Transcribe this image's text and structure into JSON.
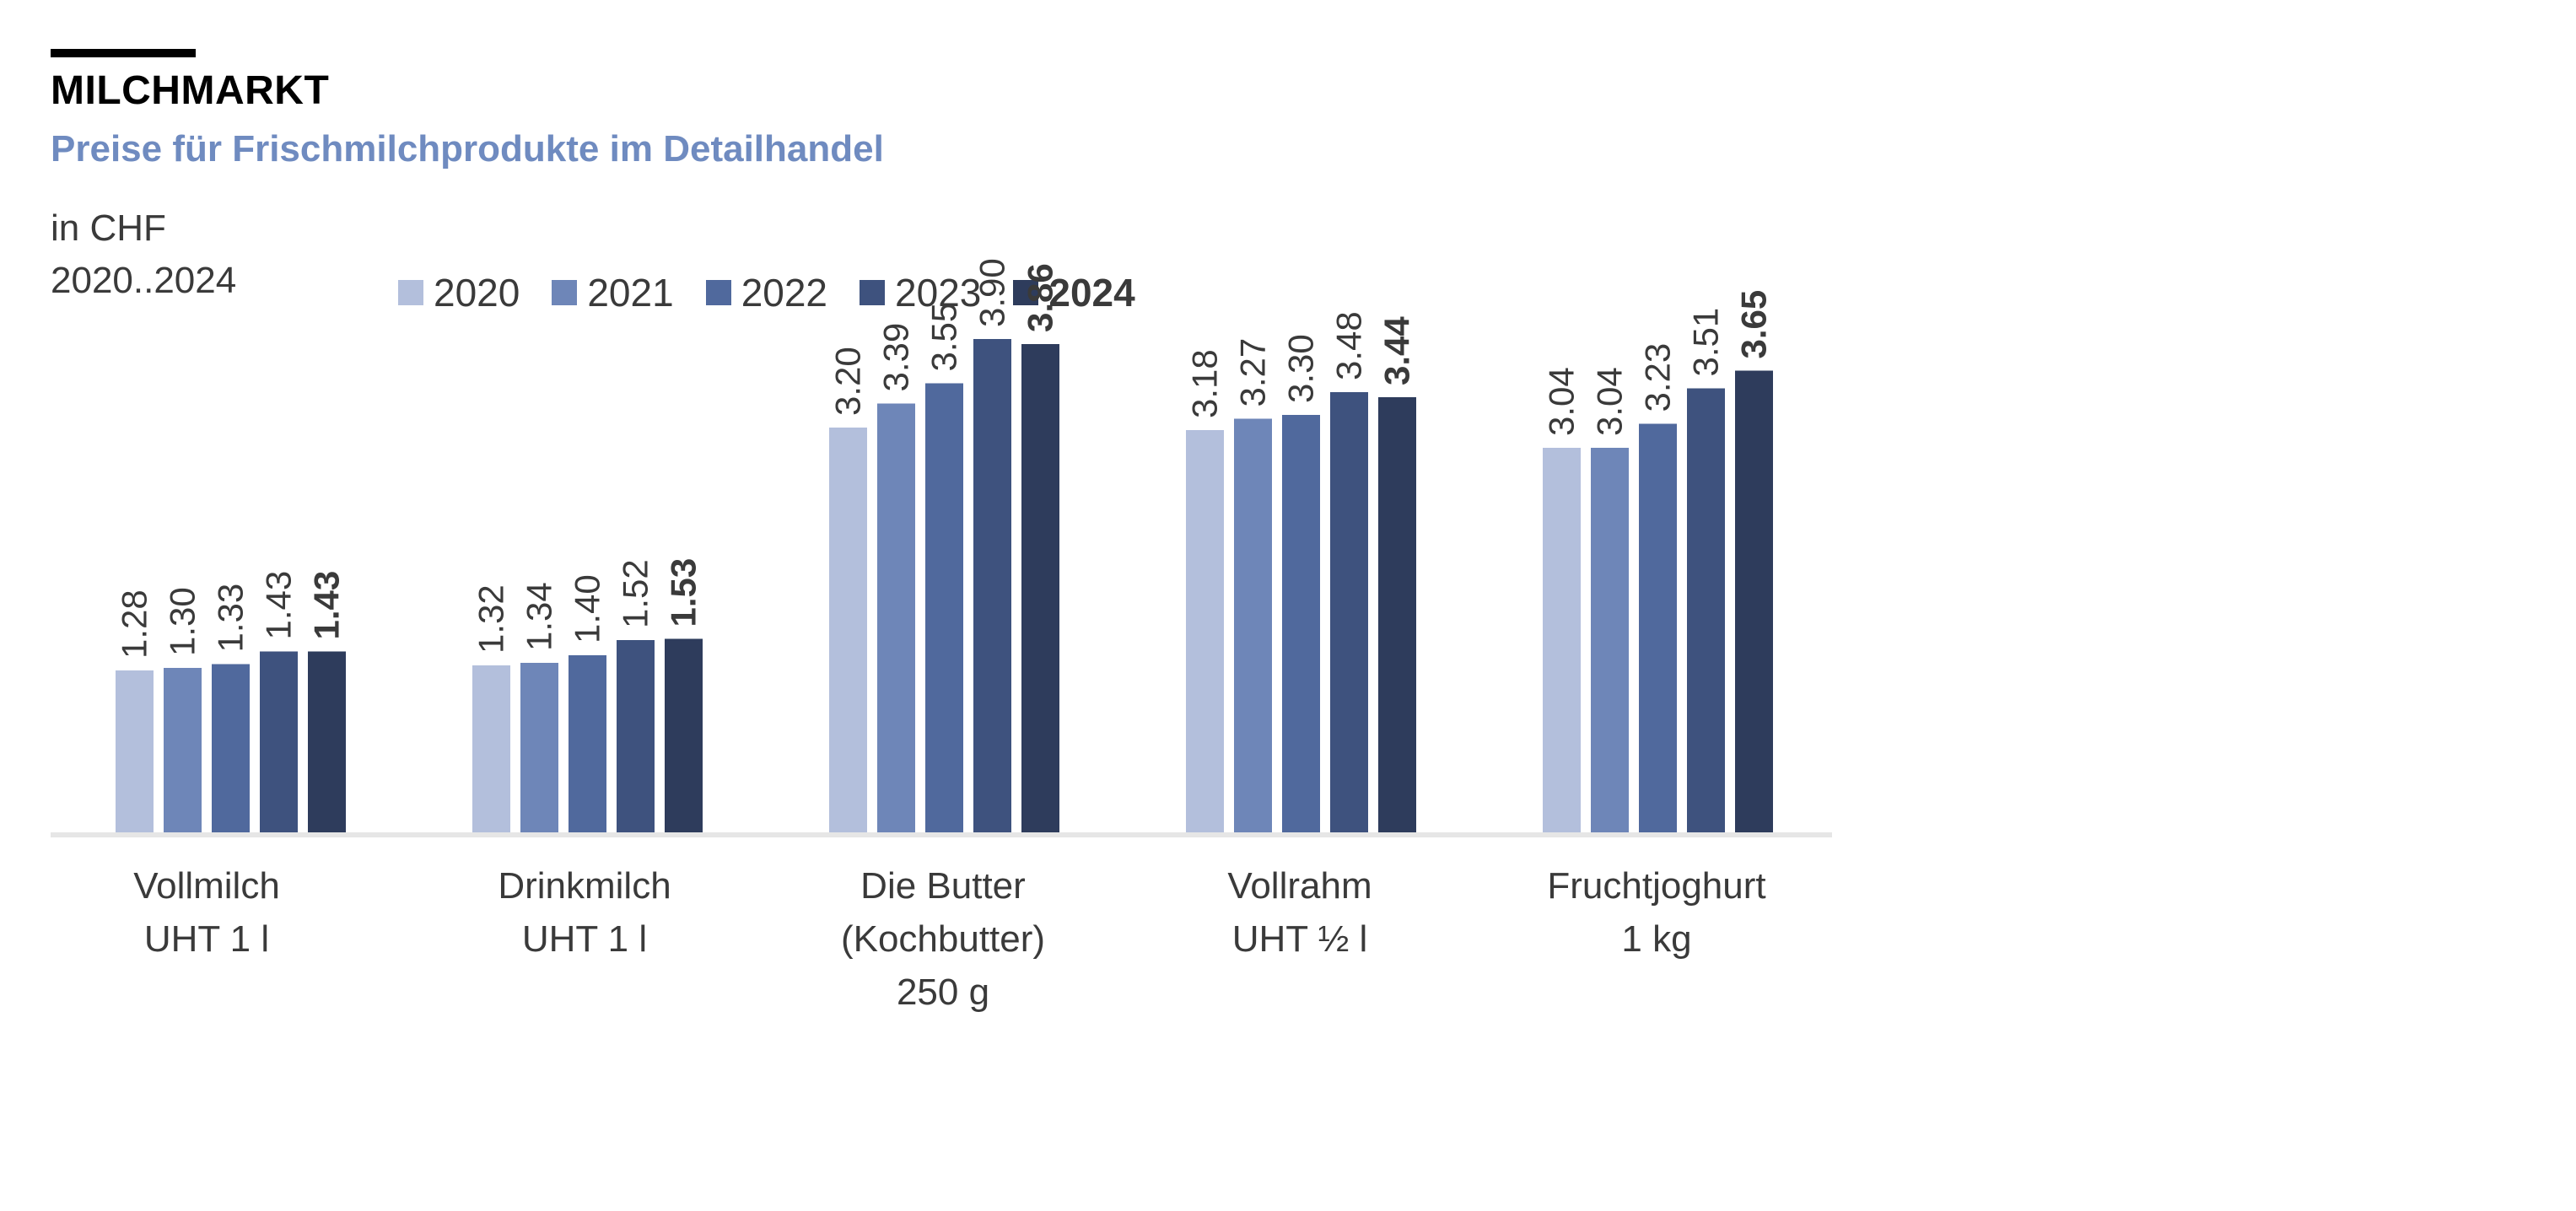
{
  "header": {
    "title": "MILCHMARKT",
    "subtitle": "Preise für Frischmilchprodukte im Detailhandel",
    "unit": "in CHF",
    "range": "2020..2024"
  },
  "colors": {
    "subtitle": "#6f8bc0",
    "axis": "#e6e6e6",
    "label_text": "#3a3a3a"
  },
  "chart_data": {
    "type": "bar",
    "title": "MILCHMARKT",
    "subtitle": "Preise für Frischmilchprodukte im Detailhandel",
    "ylabel": "in CHF",
    "xlabel": "",
    "ylim": [
      0,
      4.4
    ],
    "grid": false,
    "legend_position": "top",
    "categories": [
      [
        "Vollmilch",
        "UHT 1 l"
      ],
      [
        "Drinkmilch",
        "UHT 1 l"
      ],
      [
        "Die Butter",
        "(Kochbutter)",
        "250 g"
      ],
      [
        "Vollrahm",
        "UHT ½ l"
      ],
      [
        "Fruchtjoghurt",
        "1 kg"
      ]
    ],
    "series": [
      {
        "name": "2020",
        "color": "#b3bfdc",
        "bold": false,
        "values": [
          1.28,
          1.32,
          3.2,
          3.18,
          3.04
        ],
        "labels": [
          "1.28",
          "1.32",
          "3.20",
          "3.18",
          "3.04"
        ]
      },
      {
        "name": "2021",
        "color": "#6e86b8",
        "bold": false,
        "values": [
          1.3,
          1.34,
          3.39,
          3.27,
          3.04
        ],
        "labels": [
          "1.30",
          "1.34",
          "3.39",
          "3.27",
          "3.04"
        ]
      },
      {
        "name": "2022",
        "color": "#50699d",
        "bold": false,
        "values": [
          1.33,
          1.4,
          3.55,
          3.3,
          3.23
        ],
        "labels": [
          "1.33",
          "1.40",
          "3.55",
          "3.30",
          "3.23"
        ]
      },
      {
        "name": "2023",
        "color": "#3e527e",
        "bold": false,
        "values": [
          1.43,
          1.52,
          3.9,
          3.48,
          3.51
        ],
        "labels": [
          "1.43",
          "1.52",
          "3.90",
          "3.48",
          "3.51"
        ]
      },
      {
        "name": "2024",
        "color": "#2e3c5c",
        "bold": true,
        "values": [
          1.43,
          1.53,
          3.86,
          3.44,
          3.65
        ],
        "labels": [
          "1.43",
          "1.53",
          "3.86",
          "3.44",
          "3.65"
        ]
      }
    ]
  }
}
